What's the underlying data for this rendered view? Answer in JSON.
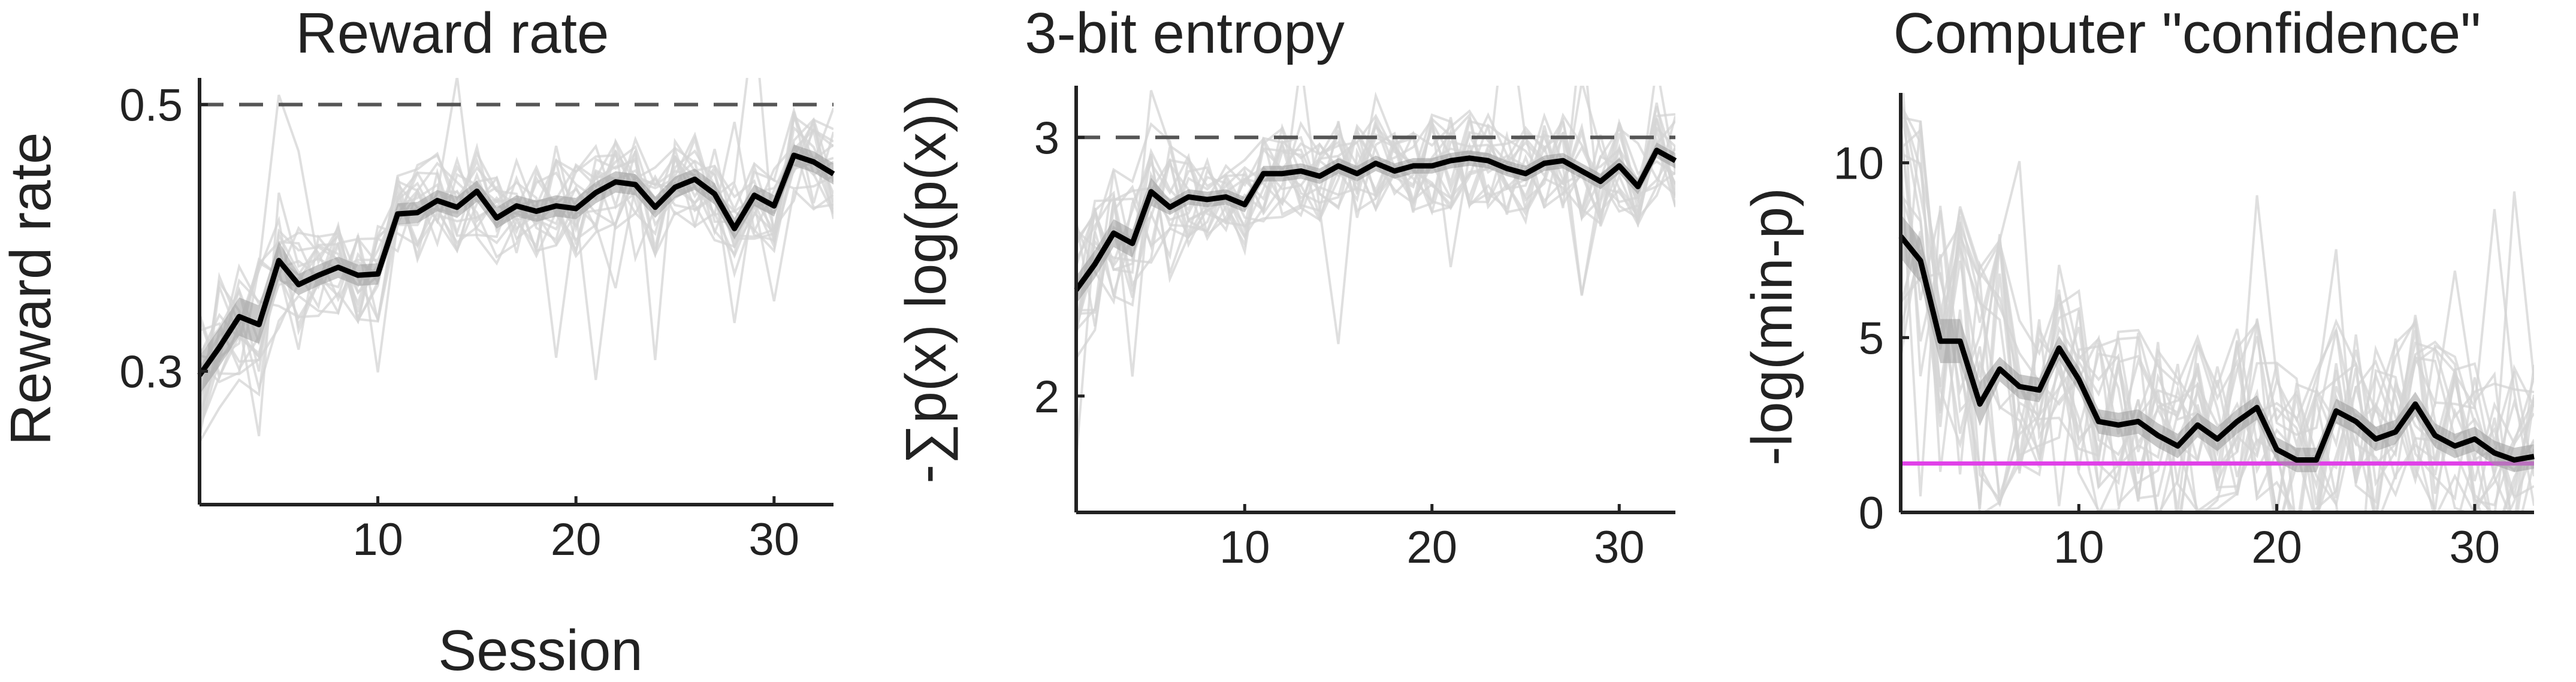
{
  "figure": {
    "colors": {
      "mean_line": "#000000",
      "individual_lines": "#d4d4d4",
      "sem_band": "#9a9a9a",
      "reference_dashed": "#555555",
      "reference_magenta": "#e040e8"
    }
  },
  "chart_data": [
    {
      "type": "line",
      "title": "Reward rate",
      "xlabel": "Session",
      "ylabel": "Reward rate",
      "xlim": [
        1,
        33
      ],
      "ylim": [
        0.2,
        0.52
      ],
      "xticks": [
        10,
        20,
        30
      ],
      "yticks": [
        0.3,
        0.5
      ],
      "ytick_labels": [
        "0.3",
        "0.5"
      ],
      "reference_line": {
        "y": 0.5,
        "style": "dashed",
        "color": "#555555"
      },
      "series": [
        {
          "x": [
            1,
            2,
            3,
            4,
            5,
            6,
            7,
            8,
            9,
            10,
            11,
            12,
            13,
            14,
            15,
            16,
            17,
            18,
            19,
            20,
            21,
            22,
            23,
            24,
            25,
            26,
            27,
            28,
            29,
            30,
            31,
            32,
            33
          ],
          "values": [
            0.297,
            0.318,
            0.341,
            0.335,
            0.383,
            0.365,
            0.372,
            0.378,
            0.372,
            0.373,
            0.418,
            0.419,
            0.428,
            0.423,
            0.435,
            0.415,
            0.424,
            0.42,
            0.424,
            0.422,
            0.434,
            0.442,
            0.44,
            0.423,
            0.438,
            0.444,
            0.433,
            0.407,
            0.432,
            0.424,
            0.462,
            0.457,
            0.448
          ],
          "sem": 0.008
        }
      ]
    },
    {
      "type": "line",
      "title": "3-bit entropy",
      "xlabel": "",
      "ylabel": "-∑p(x) log(p(x))",
      "xlim": [
        1,
        33
      ],
      "ylim": [
        1.55,
        3.2
      ],
      "xticks": [
        10,
        20,
        30
      ],
      "yticks": [
        2,
        3
      ],
      "ytick_labels": [
        "2",
        "3"
      ],
      "reference_line": {
        "y": 3,
        "style": "dashed",
        "color": "#555555"
      },
      "series": [
        {
          "x": [
            1,
            2,
            3,
            4,
            5,
            6,
            7,
            8,
            9,
            10,
            11,
            12,
            13,
            14,
            15,
            16,
            17,
            18,
            19,
            20,
            21,
            22,
            23,
            24,
            25,
            26,
            27,
            28,
            29,
            30,
            31,
            32,
            33
          ],
          "values": [
            2.41,
            2.51,
            2.63,
            2.59,
            2.79,
            2.73,
            2.77,
            2.76,
            2.77,
            2.74,
            2.86,
            2.86,
            2.87,
            2.85,
            2.89,
            2.86,
            2.9,
            2.87,
            2.89,
            2.89,
            2.91,
            2.92,
            2.91,
            2.88,
            2.86,
            2.9,
            2.91,
            2.87,
            2.83,
            2.89,
            2.81,
            2.95,
            2.91
          ],
          "sem": 0.03
        }
      ]
    },
    {
      "type": "line",
      "title": "Computer \"confidence\"",
      "xlabel": "",
      "ylabel": "-log(min-p)",
      "xlim": [
        1,
        33
      ],
      "ylim": [
        0,
        12
      ],
      "xticks": [
        10,
        20,
        30
      ],
      "yticks": [
        0,
        5,
        10
      ],
      "ytick_labels": [
        "0",
        "5",
        "10"
      ],
      "reference_line": {
        "y": 1.4,
        "style": "solid",
        "color": "#e040e8"
      },
      "series": [
        {
          "x": [
            1,
            2,
            3,
            4,
            5,
            6,
            7,
            8,
            9,
            10,
            11,
            12,
            13,
            14,
            15,
            16,
            17,
            18,
            19,
            20,
            21,
            22,
            23,
            24,
            25,
            26,
            27,
            28,
            29,
            30,
            31,
            32,
            33
          ],
          "values": [
            7.9,
            7.2,
            4.9,
            4.9,
            3.1,
            4.1,
            3.6,
            3.5,
            4.7,
            3.8,
            2.6,
            2.5,
            2.6,
            2.2,
            1.9,
            2.5,
            2.1,
            2.6,
            3.0,
            1.8,
            1.5,
            1.5,
            2.9,
            2.6,
            2.1,
            2.3,
            3.1,
            2.2,
            1.9,
            2.1,
            1.7,
            1.5,
            1.6
          ],
          "sem": 0.35
        }
      ]
    }
  ]
}
